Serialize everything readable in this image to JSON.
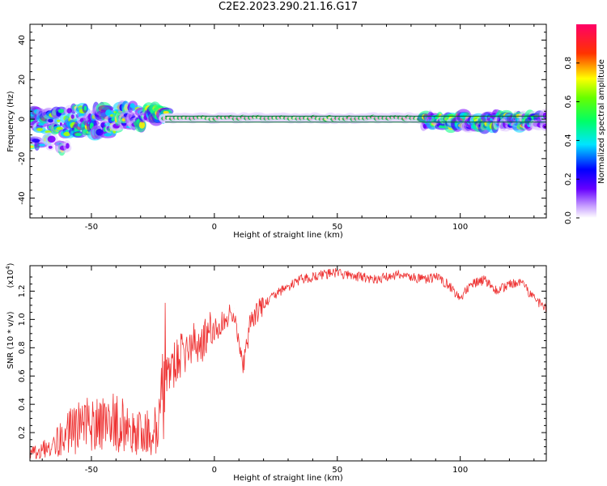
{
  "title": "C2E2.2023.290.21.16.G17",
  "chart_data": [
    {
      "type": "heatmap",
      "xlabel": "Height of straight line (km)",
      "ylabel": "Frequency (Hz)",
      "xlim": [
        -75,
        135
      ],
      "ylim": [
        -50,
        48
      ],
      "xticks": [
        -50,
        0,
        50,
        100
      ],
      "yticks": [
        -40,
        -20,
        0,
        20,
        40
      ],
      "colorbar": {
        "label": "Normalized spectral amplitude",
        "range": [
          0,
          1
        ],
        "ticks": [
          0.0,
          0.2,
          0.4,
          0.6,
          0.8
        ]
      },
      "trace_segments": [
        {
          "x0": -75,
          "x1": -60,
          "freq_min": -16,
          "freq_max": 5
        },
        {
          "x0": -60,
          "x1": -40,
          "freq_min": -8,
          "freq_max": 6
        },
        {
          "x0": -40,
          "x1": -30,
          "freq_min": -4,
          "freq_max": 7
        },
        {
          "x0": -30,
          "x1": -20,
          "freq_min": 0,
          "freq_max": 6
        },
        {
          "x0": -20,
          "x1": 85,
          "freq_min": 0,
          "freq_max": 1
        },
        {
          "x0": 85,
          "x1": 135,
          "freq_min": -4,
          "freq_max": 2
        }
      ]
    },
    {
      "type": "line",
      "xlabel": "Height of straight line (km)",
      "ylabel": "SNR (10 * v/v)",
      "y_multiplier": "(x10",
      "y_multiplier_exp": "4",
      "xlim": [
        -75,
        135
      ],
      "ylim": [
        0,
        1.38
      ],
      "xticks": [
        -50,
        0,
        50,
        100
      ],
      "yticks": [
        0.2,
        0.4,
        0.6,
        0.8,
        1.0,
        1.2
      ],
      "color": "#ee3333",
      "x": [
        -75,
        -70,
        -65,
        -60,
        -55,
        -50,
        -45,
        -40,
        -35,
        -30,
        -25,
        -22,
        -20,
        -18,
        -15,
        -10,
        -5,
        0,
        5,
        8,
        10,
        12,
        15,
        20,
        25,
        30,
        35,
        40,
        45,
        50,
        55,
        60,
        65,
        70,
        75,
        80,
        85,
        90,
        95,
        100,
        105,
        110,
        115,
        120,
        125,
        130,
        135
      ],
      "y": [
        0.05,
        0.08,
        0.12,
        0.2,
        0.25,
        0.28,
        0.25,
        0.3,
        0.22,
        0.2,
        0.2,
        0.3,
        0.65,
        0.62,
        0.72,
        0.8,
        0.85,
        0.92,
        1.0,
        1.08,
        0.78,
        0.68,
        1.0,
        1.1,
        1.18,
        1.23,
        1.28,
        1.3,
        1.32,
        1.33,
        1.31,
        1.3,
        1.28,
        1.3,
        1.32,
        1.3,
        1.28,
        1.3,
        1.25,
        1.15,
        1.25,
        1.28,
        1.2,
        1.25,
        1.25,
        1.15,
        1.08
      ]
    }
  ]
}
